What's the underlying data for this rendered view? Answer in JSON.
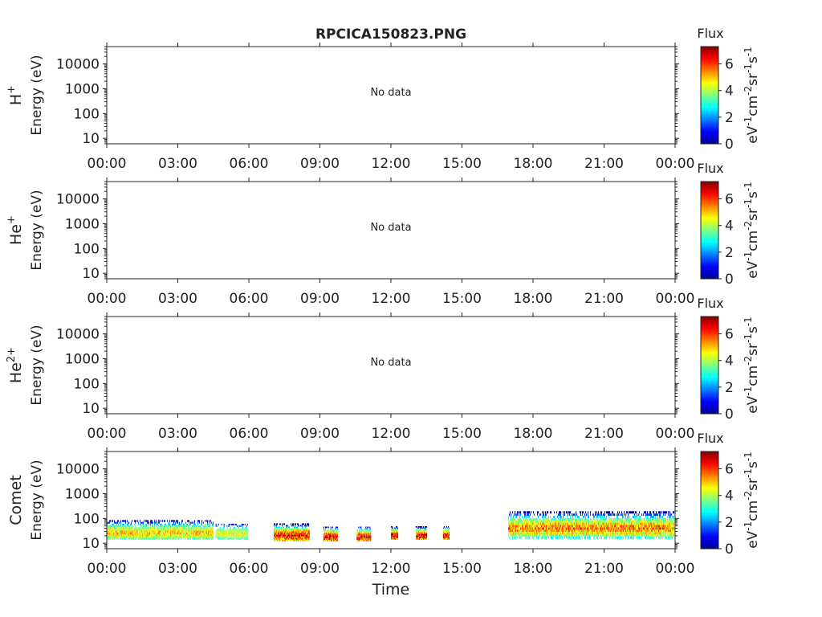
{
  "title": "RPCICA150823.PNG",
  "xlabel": "Time",
  "x_ticks": [
    "00:00",
    "03:00",
    "06:00",
    "09:00",
    "12:00",
    "15:00",
    "18:00",
    "21:00",
    "00:00"
  ],
  "y_ticks": [
    "10",
    "100",
    "1000",
    "10000"
  ],
  "colorbar": {
    "title": "Flux",
    "ticks": [
      "0",
      "2",
      "4",
      "6"
    ],
    "units_label": "eV-1cm-2sr-1s-1",
    "range": [
      0,
      7.3
    ],
    "colormap": "jet"
  },
  "no_data_text": "No data",
  "chart_data": [
    {
      "type": "heatmap",
      "species": "H+",
      "ylabel": "Energy (eV)",
      "has_data": false,
      "x_range_hours": [
        0,
        24
      ],
      "y_scale": "log",
      "ylim_eV": [
        6,
        50000
      ],
      "blocks": []
    },
    {
      "type": "heatmap",
      "species": "He+",
      "ylabel": "Energy (eV)",
      "has_data": false,
      "x_range_hours": [
        0,
        24
      ],
      "y_scale": "log",
      "ylim_eV": [
        6,
        50000
      ],
      "blocks": []
    },
    {
      "type": "heatmap",
      "species": "He2+",
      "ylabel": "Energy (eV)",
      "has_data": false,
      "x_range_hours": [
        0,
        24
      ],
      "y_scale": "log",
      "ylim_eV": [
        6,
        50000
      ],
      "blocks": []
    },
    {
      "type": "heatmap",
      "species": "Comet",
      "ylabel": "Energy (eV)",
      "has_data": true,
      "x_range_hours": [
        0,
        24
      ],
      "y_scale": "log",
      "ylim_eV": [
        6,
        50000
      ],
      "blocks": [
        {
          "start_h": 0.0,
          "end_h": 4.5,
          "e_low": 14,
          "e_high": 140,
          "peak_flux": 5.2
        },
        {
          "start_h": 4.6,
          "end_h": 5.95,
          "e_low": 14,
          "e_high": 110,
          "peak_flux": 4.8
        },
        {
          "start_h": 7.05,
          "end_h": 8.55,
          "e_low": 12,
          "e_high": 100,
          "peak_flux": 6.8
        },
        {
          "start_h": 9.15,
          "end_h": 9.75,
          "e_low": 12,
          "e_high": 80,
          "peak_flux": 7.0
        },
        {
          "start_h": 10.55,
          "end_h": 11.15,
          "e_low": 12,
          "e_high": 80,
          "peak_flux": 7.0
        },
        {
          "start_h": 12.0,
          "end_h": 12.3,
          "e_low": 14,
          "e_high": 80,
          "peak_flux": 7.0
        },
        {
          "start_h": 13.05,
          "end_h": 13.5,
          "e_low": 14,
          "e_high": 80,
          "peak_flux": 7.0
        },
        {
          "start_h": 14.2,
          "end_h": 14.45,
          "e_low": 14,
          "e_high": 80,
          "peak_flux": 7.0
        },
        {
          "start_h": 16.95,
          "end_h": 23.95,
          "e_low": 15,
          "e_high": 300,
          "peak_flux": 5.8
        }
      ]
    }
  ]
}
